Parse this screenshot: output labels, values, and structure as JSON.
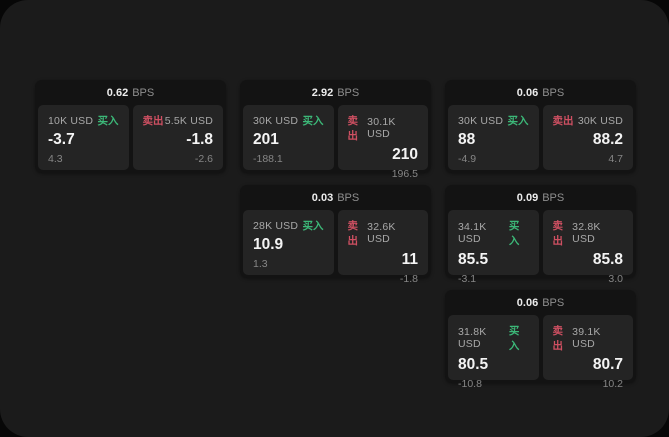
{
  "labels": {
    "bps_unit": "BPS",
    "buy": "买入",
    "sell": "卖出"
  },
  "colors": {
    "app_background": "#1b1b1b",
    "backdrop": "#070707",
    "card_background": "#131313",
    "tile_background": "#242424",
    "buy_green": "#3cb878",
    "sell_red": "#cf5062",
    "value_text": "#f4f4f4",
    "muted_text": "#868686"
  },
  "cards": [
    {
      "bps": "0.62",
      "buy": {
        "amount": "10K USD",
        "value": "-3.7",
        "delta": "4.3"
      },
      "sell": {
        "amount": "5.5K USD",
        "value": "-1.8",
        "delta": "-2.6"
      }
    },
    {
      "bps": "2.92",
      "buy": {
        "amount": "30K USD",
        "value": "201",
        "delta": "-188.1"
      },
      "sell": {
        "amount": "30.1K USD",
        "value": "210",
        "delta": "196.5"
      }
    },
    {
      "bps": "0.03",
      "buy": {
        "amount": "28K USD",
        "value": "10.9",
        "delta": "1.3"
      },
      "sell": {
        "amount": "32.6K USD",
        "value": "11",
        "delta": "-1.8"
      }
    },
    {
      "bps": "0.06",
      "buy": {
        "amount": "30K USD",
        "value": "88",
        "delta": "-4.9"
      },
      "sell": {
        "amount": "30K USD",
        "value": "88.2",
        "delta": "4.7"
      }
    },
    {
      "bps": "0.09",
      "buy": {
        "amount": "34.1K USD",
        "value": "85.5",
        "delta": "-3.1"
      },
      "sell": {
        "amount": "32.8K USD",
        "value": "85.8",
        "delta": "3.0"
      }
    },
    {
      "bps": "0.06",
      "buy": {
        "amount": "31.8K USD",
        "value": "80.5",
        "delta": "-10.8"
      },
      "sell": {
        "amount": "39.1K USD",
        "value": "80.7",
        "delta": "10.2"
      }
    }
  ]
}
